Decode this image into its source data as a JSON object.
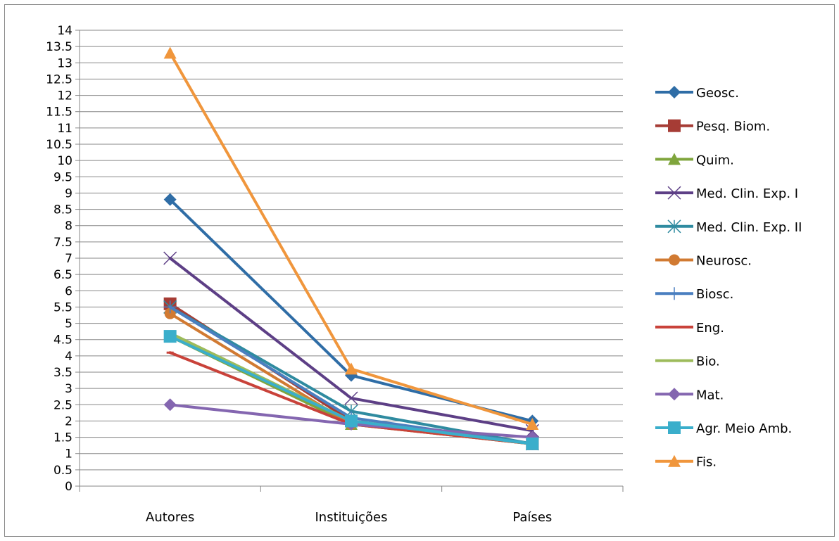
{
  "chart_data": {
    "type": "line",
    "categories": [
      "Autores",
      "Instituições",
      "Países"
    ],
    "ylim": [
      0,
      14
    ],
    "ytick_step": 0.5,
    "ytick_labels": [
      "0",
      "0.5",
      "1",
      "1.5",
      "2",
      "2.5",
      "3",
      "3.5",
      "4",
      "4.5",
      "5",
      "5.5",
      "6",
      "6.5",
      "7",
      "7.5",
      "8",
      "8.5",
      "9",
      "9.5",
      "10",
      "10.5",
      "11",
      "11.5",
      "12",
      "12.5",
      "13",
      "13.5",
      "14"
    ],
    "grid": true,
    "legend_position": "right",
    "series": [
      {
        "name": "Geosc.",
        "values": [
          8.8,
          3.4,
          2.0
        ],
        "color": "#2f6da6",
        "marker": "diamond"
      },
      {
        "name": "Pesq. Biom.",
        "values": [
          5.6,
          2.0,
          1.3
        ],
        "color": "#a63c35",
        "marker": "square"
      },
      {
        "name": "Quim.",
        "values": [
          4.6,
          1.9,
          1.3
        ],
        "color": "#7fa53c",
        "marker": "triangle"
      },
      {
        "name": "Med. Clin. Exp. I",
        "values": [
          7.0,
          2.7,
          1.7
        ],
        "color": "#5d3f86",
        "marker": "x"
      },
      {
        "name": "Med. Clin. Exp. II",
        "values": [
          5.5,
          2.3,
          1.3
        ],
        "color": "#2f8ba0",
        "marker": "star"
      },
      {
        "name": "Neurosc.",
        "values": [
          5.3,
          1.9,
          1.3
        ],
        "color": "#d17a32",
        "marker": "circle"
      },
      {
        "name": "Biosc.",
        "values": [
          5.5,
          2.1,
          1.3
        ],
        "color": "#4a7fc0",
        "marker": "plus"
      },
      {
        "name": "Eng.",
        "values": [
          4.1,
          1.9,
          1.3
        ],
        "color": "#c9423a",
        "marker": "dash"
      },
      {
        "name": "Bio.",
        "values": [
          4.7,
          2.0,
          1.3
        ],
        "color": "#9dbb5b",
        "marker": "dash"
      },
      {
        "name": "Mat.",
        "values": [
          2.5,
          1.9,
          1.5
        ],
        "color": "#8466b0",
        "marker": "diamond"
      },
      {
        "name": "Agr. Meio Amb.",
        "values": [
          4.6,
          2.0,
          1.3
        ],
        "color": "#3aaecb",
        "marker": "square"
      },
      {
        "name": "Fis.",
        "values": [
          13.3,
          3.6,
          1.9
        ],
        "color": "#f0963c",
        "marker": "triangle"
      }
    ]
  }
}
